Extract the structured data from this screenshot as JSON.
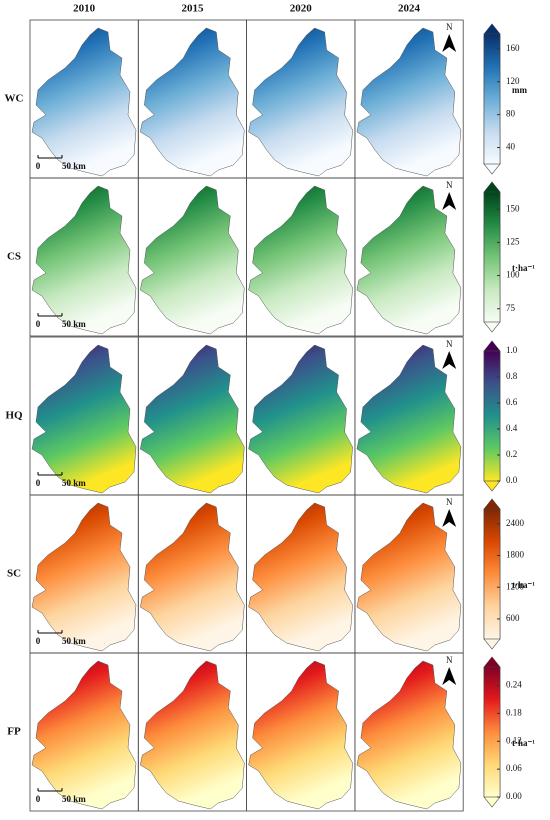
{
  "columns": [
    "2010",
    "2015",
    "2020",
    "2024"
  ],
  "rows": [
    {
      "label": "WC",
      "colorbar": {
        "unit": "mm",
        "range": [
          20,
          178
        ],
        "ticks": [
          40,
          80,
          120,
          160
        ],
        "colors": [
          "#f7fbff",
          "#c6dbef",
          "#6baed6",
          "#2171b5",
          "#08306b"
        ]
      }
    },
    {
      "label": "CS",
      "colorbar": {
        "unit": "t·ha⁻¹",
        "range": [
          65,
          163
        ],
        "ticks": [
          75,
          100,
          125,
          150
        ],
        "colors": [
          "#f7fcf5",
          "#c7e9c0",
          "#74c476",
          "#238b45",
          "#00441b"
        ]
      }
    },
    {
      "label": "HQ",
      "colorbar": {
        "unit": "",
        "range": [
          0,
          1
        ],
        "ticks": [
          {
            "value": 0,
            "label": "0.0"
          },
          0.2,
          0.4,
          0.6,
          0.8,
          {
            "value": 1,
            "label": "1.0"
          }
        ],
        "colors": [
          "#fde725",
          "#5ec962",
          "#21918c",
          "#3b528b",
          "#440154"
        ]
      }
    },
    {
      "label": "SC",
      "colorbar": {
        "unit": "t·ha⁻¹",
        "range": [
          220,
          2680
        ],
        "ticks": [
          600,
          1200,
          1800,
          2400
        ],
        "colors": [
          "#fff5e6",
          "#fdd49e",
          "#fd8d3c",
          "#d94801",
          "#7f2704"
        ]
      }
    },
    {
      "label": "FP",
      "colorbar": {
        "unit": "t·ha⁻¹",
        "range": [
          0,
          0.28
        ],
        "ticks": [
          {
            "value": 0,
            "label": "0.00"
          },
          0.06,
          0.12,
          0.18,
          0.24
        ],
        "colors": [
          "#ffffcc",
          "#fed976",
          "#fd8d3c",
          "#e31a1c",
          "#800026"
        ]
      }
    }
  ],
  "north": "N",
  "scale_bar": {
    "zero": "0",
    "length": "50 km"
  }
}
